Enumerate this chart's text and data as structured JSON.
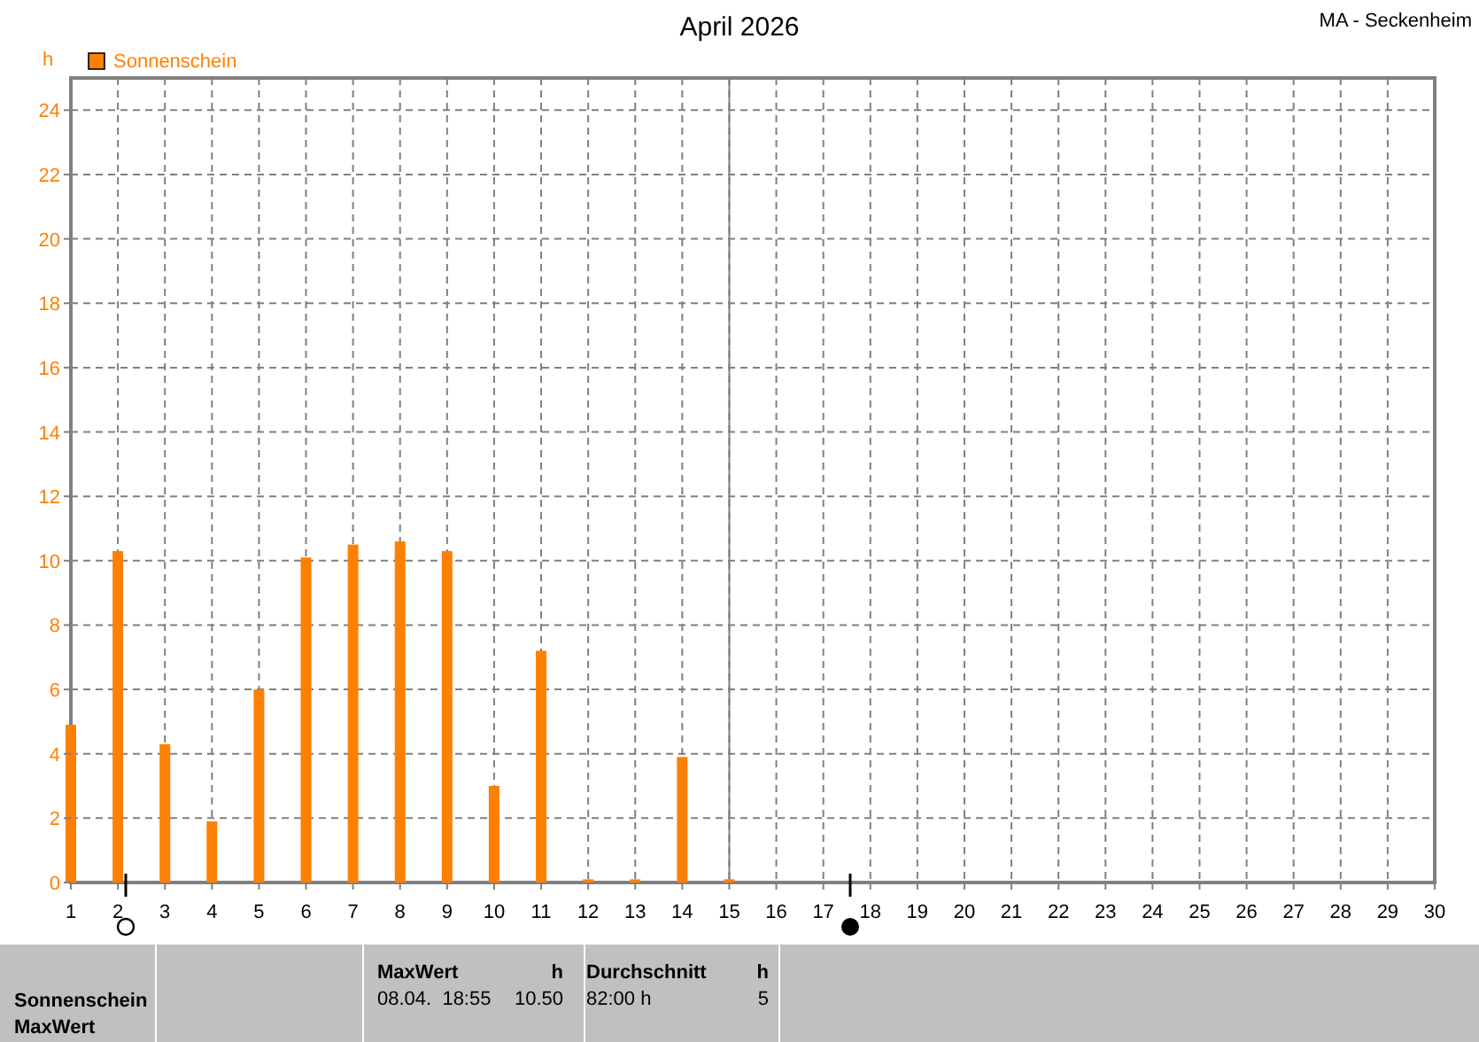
{
  "chart_data": {
    "type": "bar",
    "title": "April 2026",
    "subtitle": "MA - Seckenheim",
    "ylabel": "h",
    "x": [
      1,
      2,
      3,
      4,
      5,
      6,
      7,
      8,
      9,
      10,
      11,
      12,
      13,
      14,
      15
    ],
    "series": [
      {
        "name": "Sonnenschein",
        "color": "#ff8000",
        "values": [
          4.9,
          10.3,
          4.3,
          1.9,
          6.0,
          10.1,
          10.5,
          10.6,
          10.3,
          3.0,
          7.2,
          0.1,
          0.1,
          3.9,
          0.1
        ]
      }
    ],
    "xlim": [
      1,
      30
    ],
    "xticks": [
      1,
      2,
      3,
      4,
      5,
      6,
      7,
      8,
      9,
      10,
      11,
      12,
      13,
      14,
      15,
      16,
      17,
      18,
      19,
      20,
      21,
      22,
      23,
      24,
      25,
      26,
      27,
      28,
      29,
      30
    ],
    "ylim": [
      0,
      25
    ],
    "yticks": [
      0,
      2,
      4,
      6,
      8,
      10,
      12,
      14,
      16,
      18,
      20,
      22,
      24
    ],
    "ref_lines": [
      {
        "axis": "x",
        "value": 15,
        "color": "#808080"
      }
    ],
    "grid": true,
    "legend": "top left",
    "annotations": [
      "Sonnenschein",
      "MaxWert",
      "MaxWert",
      "h",
      "08.04.  18:55",
      "10.50",
      "Durchschnitt",
      "h",
      "82:00 h",
      "5"
    ]
  }
}
